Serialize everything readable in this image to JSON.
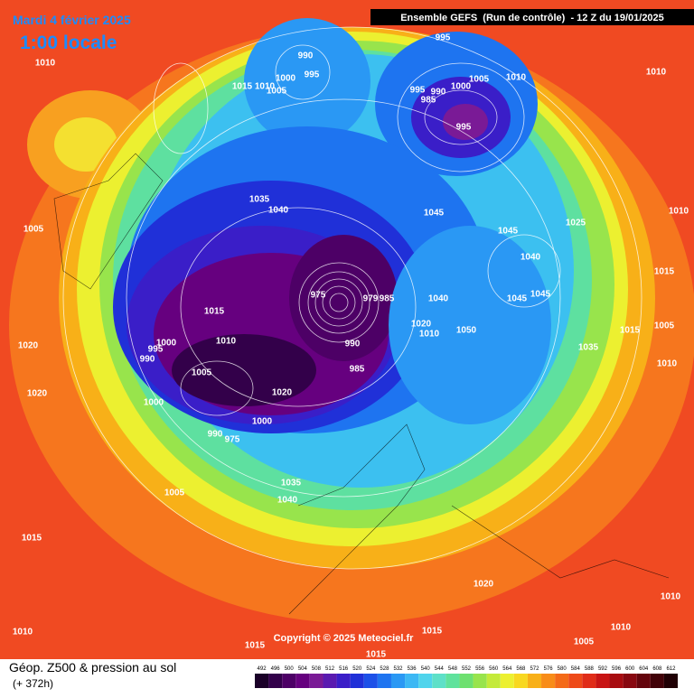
{
  "header": {
    "date": "Mardi 4 février 2025",
    "time": "1:00 locale",
    "run": "Ensemble GEFS  (Run de contrôle)  - 12 Z du 19/01/2025"
  },
  "copyright": "Copyright © 2025 Meteociel.fr",
  "footer": {
    "title": "Géop. Z500 & pression au sol",
    "lead": "(+ 372h)"
  },
  "isobar_labels": [
    1010,
    990,
    1000,
    995,
    1015,
    1010,
    1005,
    995,
    995,
    990,
    1000,
    1005,
    1010,
    1010,
    985,
    995,
    1005,
    1035,
    1040,
    1045,
    1045,
    1025,
    1010,
    1040,
    1045,
    1045,
    1015,
    1040,
    975,
    979,
    985,
    1015,
    1005,
    1010,
    1020,
    1050,
    1015,
    990,
    1010,
    1000,
    995,
    990,
    1020,
    1035,
    1010,
    1005,
    985,
    1020,
    1020,
    1000,
    1000,
    990,
    975,
    1035,
    1040,
    1005,
    1015,
    1020,
    1010,
    1015,
    1010,
    1005,
    1010,
    1015,
    1015
  ],
  "scale": {
    "values": [
      492,
      496,
      500,
      504,
      508,
      512,
      516,
      520,
      524,
      528,
      532,
      536,
      540,
      544,
      548,
      552,
      556,
      560,
      564,
      568,
      572,
      576,
      580,
      584,
      588,
      592,
      596,
      600,
      604,
      608,
      612
    ],
    "colors": [
      "#1a0028",
      "#33004a",
      "#4d0066",
      "#66007f",
      "#7a1a96",
      "#5a1ab0",
      "#3a1ec8",
      "#2030d8",
      "#1c50e8",
      "#1e74f0",
      "#2a98f4",
      "#3cb8f4",
      "#50d4ec",
      "#5ee0c8",
      "#60e29c",
      "#6ee070",
      "#98e44c",
      "#c4ea3a",
      "#ecf030",
      "#f8d820",
      "#f8b018",
      "#f88c18",
      "#f46a18",
      "#ee4a18",
      "#e02c18",
      "#c81414",
      "#a80c10",
      "#880810",
      "#64040c",
      "#420208",
      "#200004"
    ]
  }
}
